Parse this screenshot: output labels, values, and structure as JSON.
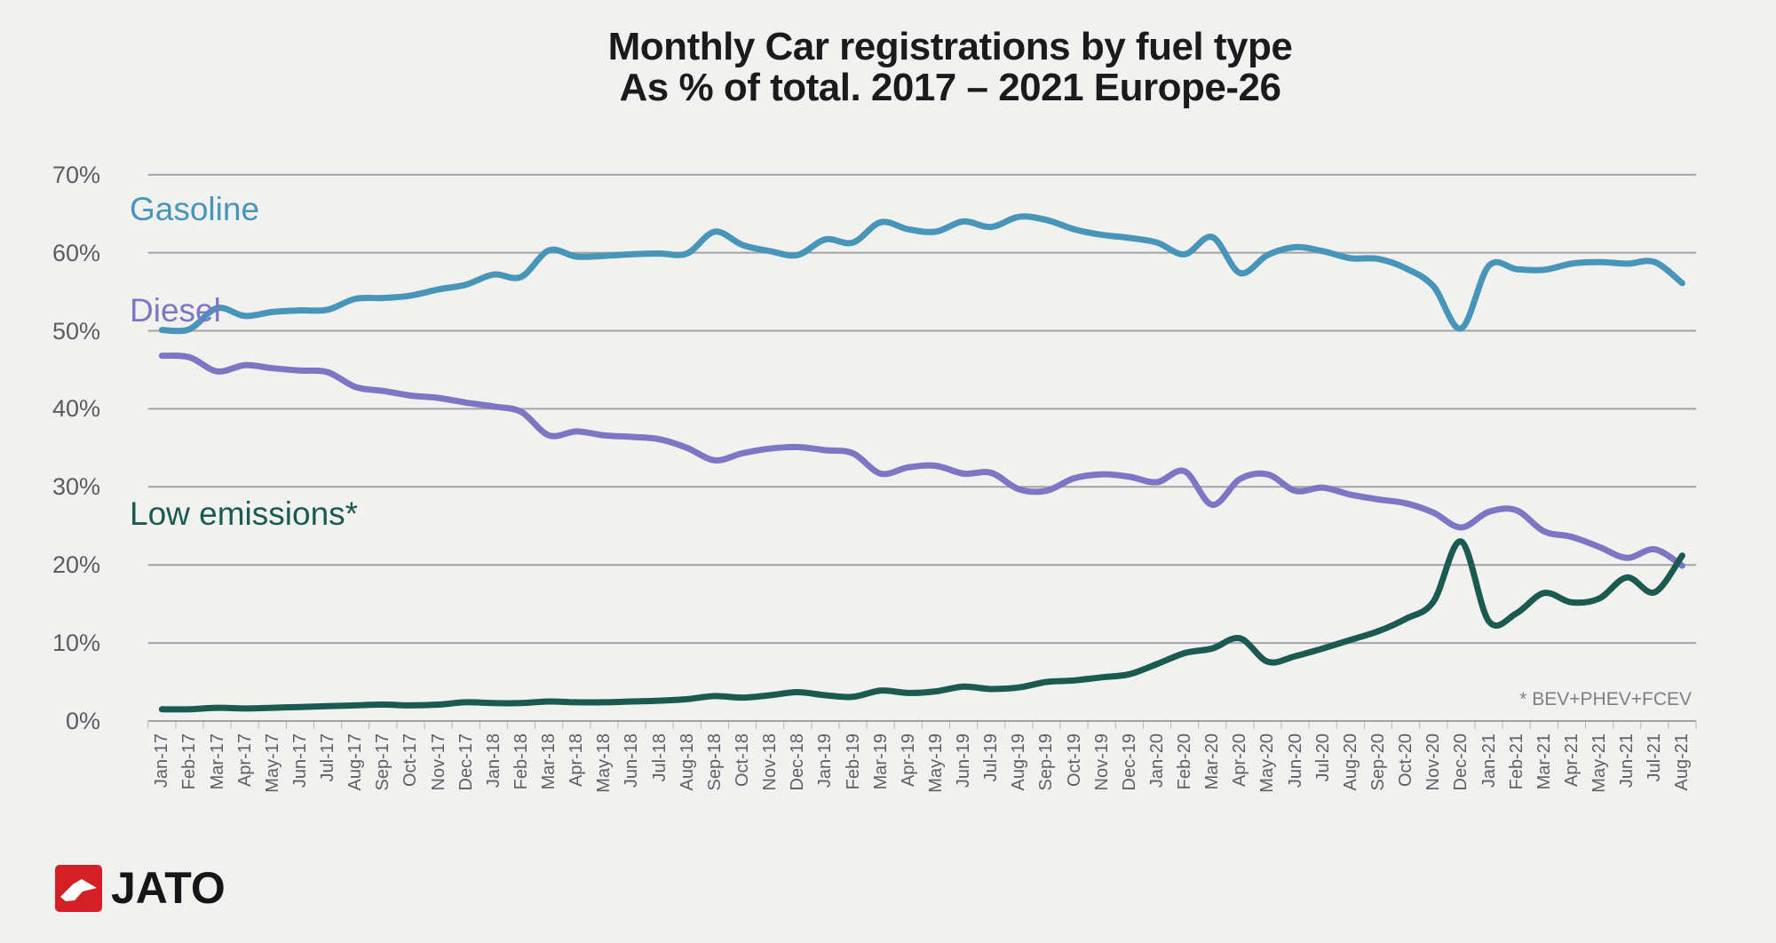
{
  "window": {
    "background": "#f1f1ef"
  },
  "logo": {
    "text": "JATO",
    "brand_red": "#d41f26"
  },
  "chart_data": {
    "type": "line",
    "title": "Monthly Car registrations by fuel type",
    "subtitle": "As % of total. 2017 – 2021 Europe-26",
    "annotation": "* BEV+PHEV+FCEV",
    "smoothed": true,
    "grid": true,
    "legend": "inline-labels",
    "ylim": [
      0,
      70
    ],
    "yticks": [
      "70%",
      "60%",
      "50%",
      "40%",
      "30%",
      "20%",
      "10%",
      "0%"
    ],
    "categories": [
      "Jan-17",
      "Feb-17",
      "Mar-17",
      "Apr-17",
      "May-17",
      "Jun-17",
      "Jul-17",
      "Aug-17",
      "Sep-17",
      "Oct-17",
      "Nov-17",
      "Dec-17",
      "Jan-18",
      "Feb-18",
      "Mar-18",
      "Apr-18",
      "May-18",
      "Jun-18",
      "Jul-18",
      "Aug-18",
      "Sep-18",
      "Oct-18",
      "Nov-18",
      "Dec-18",
      "Jan-19",
      "Feb-19",
      "Mar-19",
      "Apr-19",
      "May-19",
      "Jun-19",
      "Jul-19",
      "Aug-19",
      "Sep-19",
      "Oct-19",
      "Nov-19",
      "Dec-19",
      "Jan-20",
      "Feb-20",
      "Mar-20",
      "Apr-20",
      "May-20",
      "Jun-20",
      "Jul-20",
      "Aug-20",
      "Sep-20",
      "Oct-20",
      "Nov-20",
      "Dec-20",
      "Jan-21",
      "Feb-21",
      "Mar-21",
      "Apr-21",
      "May-21",
      "Jun-21",
      "Jul-21",
      "Aug-21"
    ],
    "series": [
      {
        "name": "Gasoline",
        "color": "#4895ba",
        "values": [
          50.1,
          50.2,
          52.9,
          51.9,
          52.4,
          52.6,
          52.7,
          54.1,
          54.2,
          54.5,
          55.3,
          55.9,
          57.2,
          56.9,
          60.3,
          59.5,
          59.6,
          59.8,
          59.9,
          59.9,
          62.7,
          61.0,
          60.2,
          59.7,
          61.7,
          61.3,
          63.9,
          63.0,
          62.7,
          64.0,
          63.3,
          64.6,
          64.2,
          63.0,
          62.3,
          61.9,
          61.3,
          59.8,
          62.0,
          57.4,
          59.7,
          60.7,
          60.2,
          59.3,
          59.2,
          58.0,
          55.7,
          50.3,
          58.3,
          57.9,
          57.8,
          58.6,
          58.8,
          58.6,
          58.8,
          56.1
        ]
      },
      {
        "name": "Diesel",
        "color": "#7d76c4",
        "values": [
          46.8,
          46.6,
          44.8,
          45.6,
          45.2,
          44.9,
          44.7,
          42.8,
          42.3,
          41.7,
          41.4,
          40.8,
          40.3,
          39.6,
          36.6,
          37.1,
          36.6,
          36.4,
          36.1,
          35.0,
          33.4,
          34.3,
          34.9,
          35.1,
          34.7,
          34.3,
          31.7,
          32.5,
          32.7,
          31.7,
          31.8,
          29.7,
          29.5,
          31.1,
          31.6,
          31.3,
          30.6,
          32.0,
          27.7,
          31.0,
          31.6,
          29.5,
          29.9,
          29.0,
          28.4,
          27.9,
          26.7,
          24.8,
          26.8,
          27.0,
          24.3,
          23.6,
          22.3,
          20.9,
          22.0,
          19.9
        ]
      },
      {
        "name": "Low emissions*",
        "color": "#1b5a51",
        "values": [
          1.5,
          1.5,
          1.7,
          1.6,
          1.7,
          1.8,
          1.9,
          2.0,
          2.1,
          2.0,
          2.1,
          2.4,
          2.3,
          2.3,
          2.5,
          2.4,
          2.4,
          2.5,
          2.6,
          2.8,
          3.2,
          3.0,
          3.3,
          3.7,
          3.3,
          3.1,
          3.9,
          3.6,
          3.8,
          4.4,
          4.1,
          4.3,
          5.0,
          5.2,
          5.6,
          6.0,
          7.3,
          8.7,
          9.3,
          10.6,
          7.6,
          8.3,
          9.3,
          10.4,
          11.5,
          13.1,
          15.3,
          23.0,
          12.8,
          13.8,
          16.4,
          15.2,
          15.7,
          18.4,
          16.5,
          21.2
        ]
      }
    ]
  }
}
